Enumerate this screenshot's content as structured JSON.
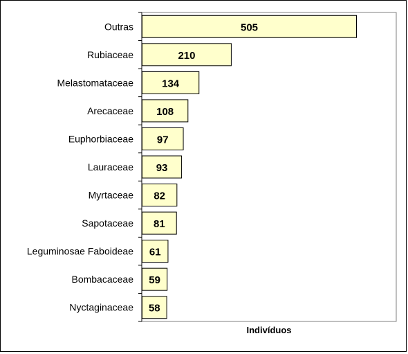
{
  "chart_data": {
    "type": "bar",
    "orientation": "horizontal",
    "categories": [
      "Outras",
      "Rubiaceae",
      "Melastomataceae",
      "Arecaceae",
      "Euphorbiaceae",
      "Lauraceae",
      "Myrtaceae",
      "Sapotaceae",
      "Leguminosae Faboideae",
      "Bombacaceae",
      "Nyctaginaceae"
    ],
    "values": [
      505,
      210,
      134,
      108,
      97,
      93,
      82,
      81,
      61,
      59,
      58
    ],
    "data_labels": [
      "505",
      "210",
      "134",
      "108",
      "97",
      "93",
      "82",
      "81",
      "61",
      "59",
      "58"
    ],
    "title": "",
    "xlabel": "Indivíduos",
    "ylabel": "",
    "xlim": [
      0,
      600
    ],
    "grid": false,
    "legend": "none",
    "colors": {
      "bar_fill": "#ffffcc",
      "bar_stroke": "#000000",
      "axis": "#000000",
      "frame": "#000000"
    }
  }
}
